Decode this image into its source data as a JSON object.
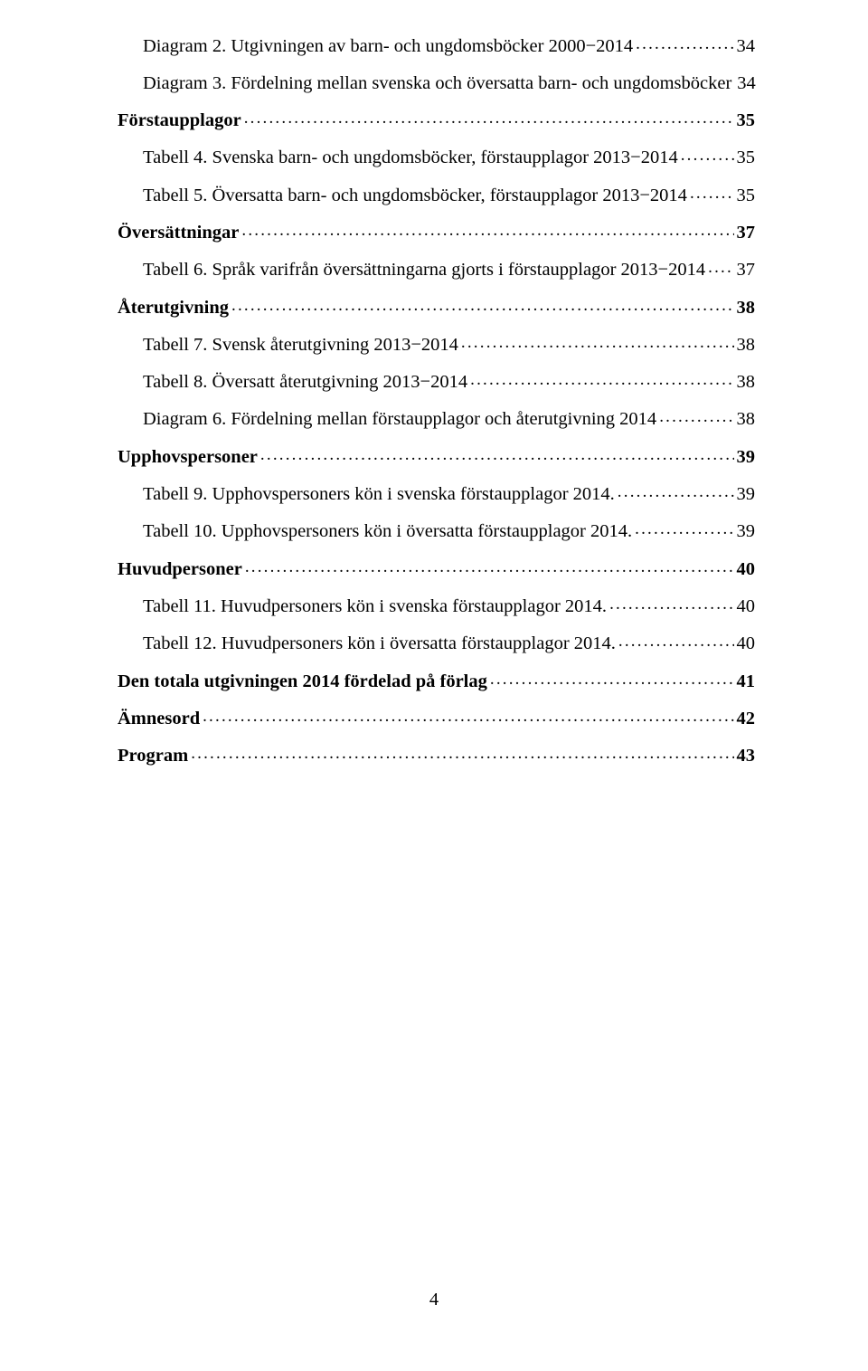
{
  "toc": [
    {
      "label": "Diagram 2. Utgivningen av barn- och ungdomsböcker 2000−2014",
      "page": "34",
      "bold": false,
      "indent": true
    },
    {
      "label": "Diagram 3. Fördelning mellan svenska och översatta barn- och ungdomsböcker",
      "page": "34",
      "bold": false,
      "indent": true
    },
    {
      "label": "Förstaupplagor",
      "page": "35",
      "bold": true,
      "indent": false
    },
    {
      "label": "Tabell 4. Svenska barn- och ungdomsböcker, förstaupplagor 2013−2014",
      "page": "35",
      "bold": false,
      "indent": true
    },
    {
      "label": "Tabell 5. Översatta barn- och ungdomsböcker, förstaupplagor 2013−2014",
      "page": "35",
      "bold": false,
      "indent": true
    },
    {
      "label": "Översättningar",
      "page": "37",
      "bold": true,
      "indent": false
    },
    {
      "label": "Tabell 6. Språk varifrån översättningarna gjorts i förstaupplagor 2013−2014",
      "page": "37",
      "bold": false,
      "indent": true
    },
    {
      "label": "Återutgivning",
      "page": "38",
      "bold": true,
      "indent": false
    },
    {
      "label": "Tabell 7. Svensk återutgivning 2013−2014",
      "page": "38",
      "bold": false,
      "indent": true
    },
    {
      "label": "Tabell 8. Översatt återutgivning 2013−2014",
      "page": "38",
      "bold": false,
      "indent": true
    },
    {
      "label": "Diagram 6. Fördelning mellan förstaupplagor och återutgivning 2014",
      "page": "38",
      "bold": false,
      "indent": true
    },
    {
      "label": "Upphovspersoner",
      "page": "39",
      "bold": true,
      "indent": false
    },
    {
      "label": "Tabell 9. Upphovspersoners kön i svenska förstaupplagor 2014.",
      "page": "39",
      "bold": false,
      "indent": true
    },
    {
      "label": "Tabell 10. Upphovspersoners kön i översatta förstaupplagor 2014.",
      "page": "39",
      "bold": false,
      "indent": true
    },
    {
      "label": "Huvudpersoner",
      "page": "40",
      "bold": true,
      "indent": false
    },
    {
      "label": "Tabell 11. Huvudpersoners kön i svenska förstaupplagor 2014.",
      "page": "40",
      "bold": false,
      "indent": true
    },
    {
      "label": "Tabell 12. Huvudpersoners kön i översatta förstaupplagor 2014.",
      "page": "40",
      "bold": false,
      "indent": true
    },
    {
      "label": "Den totala utgivningen 2014 fördelad på förlag",
      "page": "41",
      "bold": true,
      "indent": false
    },
    {
      "label": "Ämnesord",
      "page": "42",
      "bold": true,
      "indent": false
    },
    {
      "label": "Program",
      "page": "43",
      "bold": true,
      "indent": false
    }
  ],
  "page_number": "4"
}
